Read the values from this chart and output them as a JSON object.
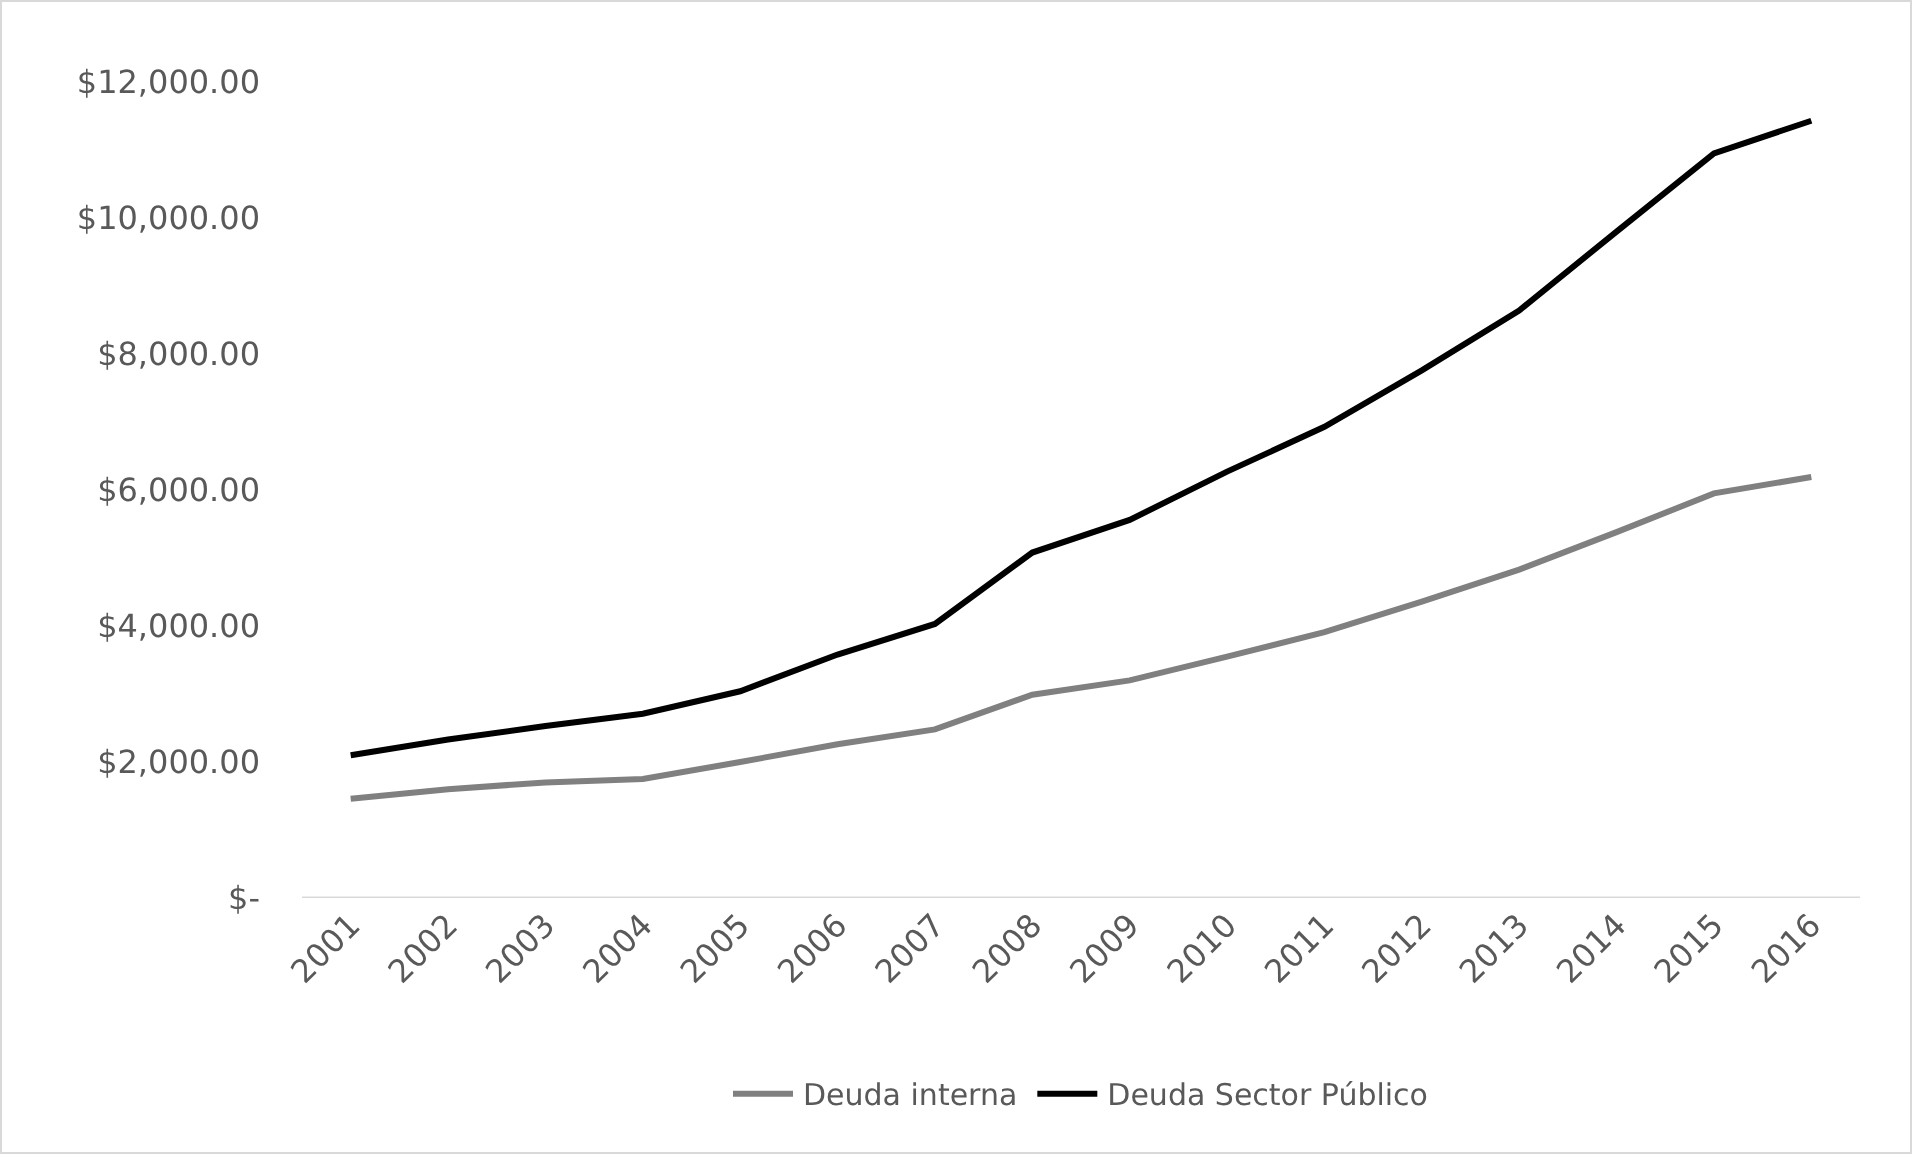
{
  "chart_data": {
    "type": "line",
    "categories": [
      "2001",
      "2002",
      "2003",
      "2004",
      "2005",
      "2006",
      "2007",
      "2008",
      "2009",
      "2010",
      "2011",
      "2012",
      "2013",
      "2014",
      "2015",
      "2016"
    ],
    "series": [
      {
        "name": "Deuda interna",
        "color": "#808080",
        "values": [
          1460,
          1600,
          1700,
          1750,
          2000,
          2260,
          2480,
          2990,
          3200,
          3550,
          3910,
          4360,
          4830,
          5380,
          5950,
          6190
        ]
      },
      {
        "name": "Deuda Sector Público",
        "color": "#000000",
        "values": [
          2100,
          2330,
          2530,
          2710,
          3040,
          3580,
          4030,
          5080,
          5560,
          6270,
          6930,
          7760,
          8640,
          9800,
          10950,
          11430
        ]
      }
    ],
    "ylim": [
      0,
      12000
    ],
    "yticks": [
      {
        "value": 0,
        "label": "$-"
      },
      {
        "value": 2000,
        "label": "$2,000.00"
      },
      {
        "value": 4000,
        "label": "$4,000.00"
      },
      {
        "value": 6000,
        "label": "$6,000.00"
      },
      {
        "value": 8000,
        "label": "$8,000.00"
      },
      {
        "value": 10000,
        "label": "$10,000.00"
      },
      {
        "value": 12000,
        "label": "$12,000.00"
      }
    ],
    "grid": false,
    "legend": "bottom",
    "marker": "none",
    "line_style": "solid"
  }
}
